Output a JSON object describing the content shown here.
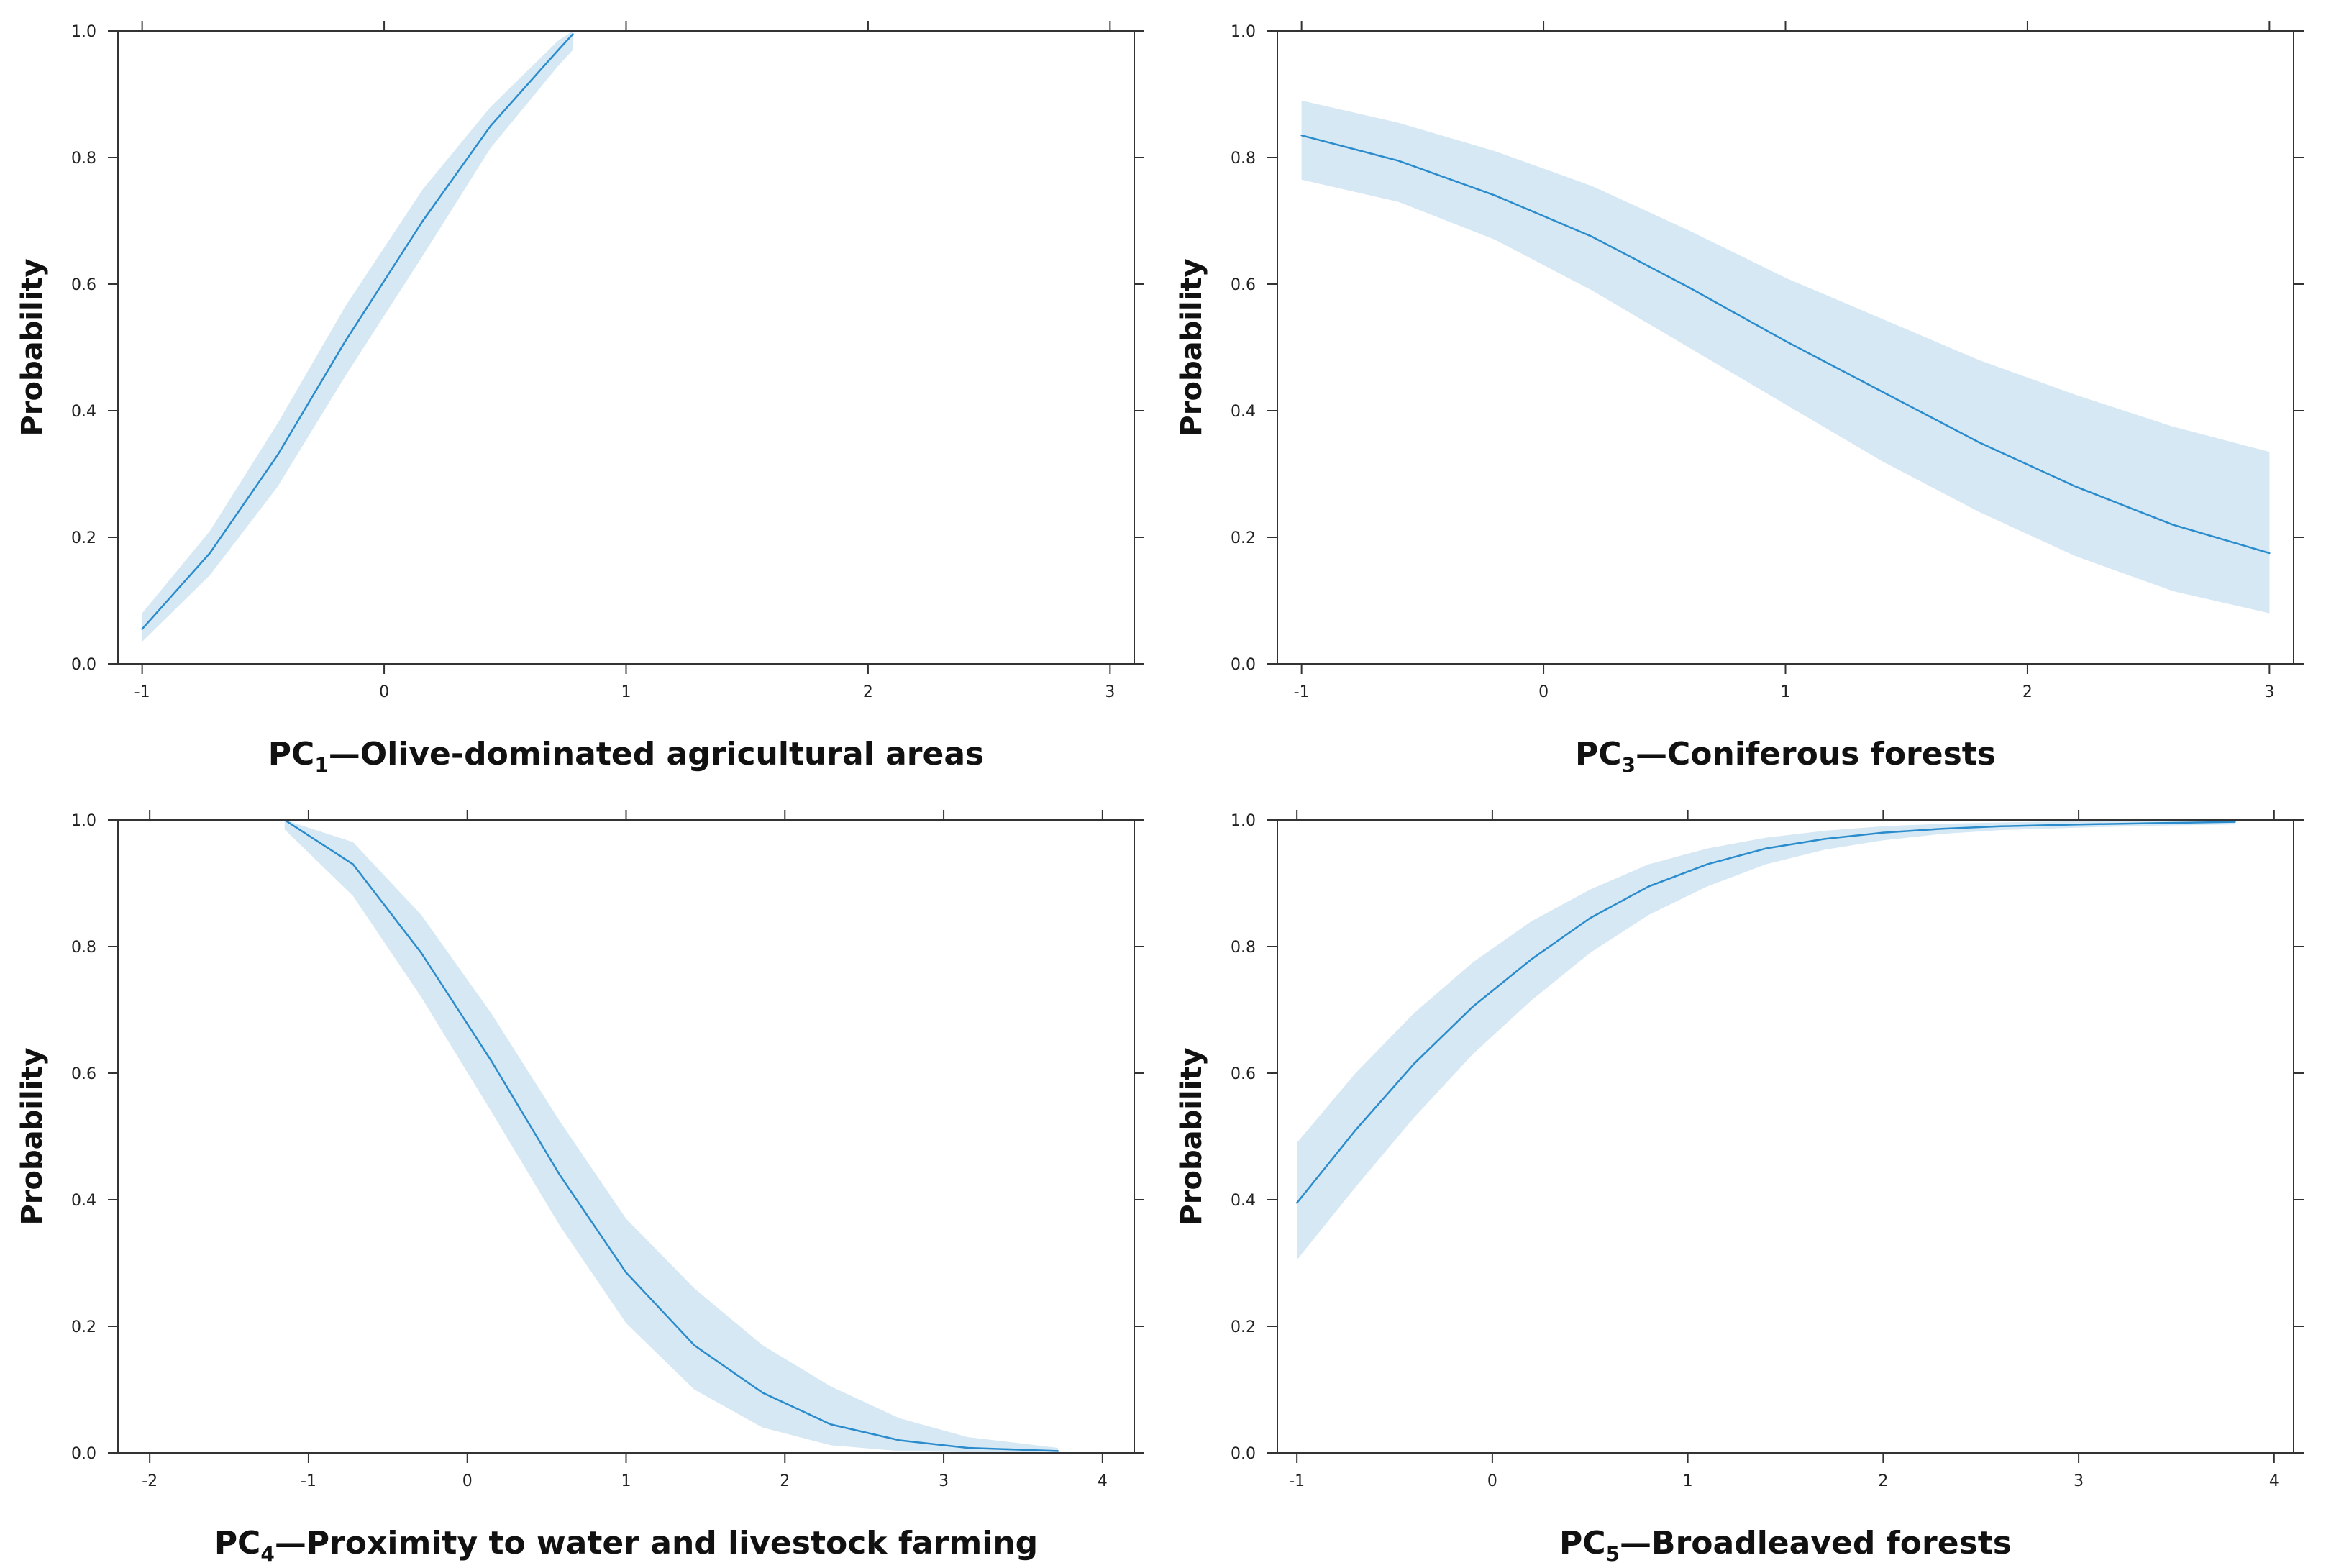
{
  "chart_data": [
    {
      "type": "line",
      "title": "",
      "xlabel": {
        "prefix": "PC",
        "subscript": "1",
        "suffix": "—Olive-dominated agricultural areas"
      },
      "ylabel": "Probability",
      "xlim": [
        -1.1,
        3.1
      ],
      "ylim": [
        0,
        1
      ],
      "xticks": [
        "-1",
        "0",
        "1",
        "2",
        "3"
      ],
      "xtick_values": [
        -1,
        0,
        1,
        2,
        3
      ],
      "yticks": [
        "0.0",
        "0.2",
        "0.4",
        "0.6",
        "0.8",
        "1.0"
      ],
      "ytick_values": [
        0,
        0.2,
        0.4,
        0.6,
        0.8,
        1.0
      ],
      "band_color": "#d6e8f4",
      "line_color": "#2a8ccc",
      "series": [
        {
          "name": "fit",
          "x": [
            -1.0,
            -0.72,
            -0.44,
            -0.16,
            0.16,
            0.44,
            0.72,
            0.78
          ],
          "y": [
            0.055,
            0.175,
            0.33,
            0.51,
            0.7,
            0.85,
            0.97,
            0.995
          ],
          "lower": [
            0.035,
            0.14,
            0.28,
            0.455,
            0.645,
            0.815,
            0.945,
            0.97
          ],
          "upper": [
            0.08,
            0.21,
            0.38,
            0.565,
            0.75,
            0.88,
            0.985,
            1.0
          ]
        }
      ]
    },
    {
      "type": "line",
      "title": "",
      "xlabel": {
        "prefix": "PC",
        "subscript": "3",
        "suffix": "—Coniferous forests"
      },
      "ylabel": "Probability",
      "xlim": [
        -1.1,
        3.1
      ],
      "ylim": [
        0,
        1
      ],
      "xticks": [
        "-1",
        "0",
        "1",
        "2",
        "3"
      ],
      "xtick_values": [
        -1,
        0,
        1,
        2,
        3
      ],
      "yticks": [
        "0.0",
        "0.2",
        "0.4",
        "0.6",
        "0.8",
        "1.0"
      ],
      "ytick_values": [
        0,
        0.2,
        0.4,
        0.6,
        0.8,
        1.0
      ],
      "band_color": "#d6e8f4",
      "line_color": "#2a8ccc",
      "series": [
        {
          "name": "fit",
          "x": [
            -1.0,
            -0.6,
            -0.2,
            0.2,
            0.6,
            1.0,
            1.4,
            1.8,
            2.2,
            2.6,
            3.0
          ],
          "y": [
            0.835,
            0.795,
            0.74,
            0.675,
            0.595,
            0.51,
            0.43,
            0.35,
            0.28,
            0.22,
            0.175
          ],
          "lower": [
            0.765,
            0.73,
            0.67,
            0.59,
            0.5,
            0.41,
            0.32,
            0.24,
            0.17,
            0.115,
            0.08
          ],
          "upper": [
            0.89,
            0.855,
            0.81,
            0.755,
            0.685,
            0.61,
            0.545,
            0.48,
            0.425,
            0.375,
            0.335
          ]
        }
      ]
    },
    {
      "type": "line",
      "title": "",
      "xlabel": {
        "prefix": "PC",
        "subscript": "4",
        "suffix": "—Proximity to water and livestock farming"
      },
      "ylabel": "Probability",
      "xlim": [
        -2.2,
        4.2
      ],
      "ylim": [
        0,
        1
      ],
      "xticks": [
        "-2",
        "-1",
        "0",
        "1",
        "2",
        "3",
        "4"
      ],
      "xtick_values": [
        -2,
        -1,
        0,
        1,
        2,
        3,
        4
      ],
      "yticks": [
        "0.0",
        "0.2",
        "0.4",
        "0.6",
        "0.8",
        "1.0"
      ],
      "ytick_values": [
        0,
        0.2,
        0.4,
        0.6,
        0.8,
        1.0
      ],
      "band_color": "#d6e8f4",
      "line_color": "#2a8ccc",
      "series": [
        {
          "name": "fit",
          "x": [
            -1.15,
            -0.72,
            -0.29,
            0.15,
            0.58,
            1.0,
            1.43,
            1.86,
            2.29,
            2.72,
            3.15,
            3.72
          ],
          "y": [
            1.0,
            0.93,
            0.79,
            0.62,
            0.44,
            0.285,
            0.17,
            0.095,
            0.045,
            0.02,
            0.008,
            0.003
          ],
          "lower": [
            0.985,
            0.88,
            0.72,
            0.54,
            0.36,
            0.205,
            0.1,
            0.04,
            0.012,
            0.003,
            0.001,
            0.0
          ],
          "upper": [
            1.0,
            0.965,
            0.85,
            0.695,
            0.525,
            0.37,
            0.26,
            0.17,
            0.105,
            0.055,
            0.025,
            0.008
          ]
        }
      ]
    },
    {
      "type": "line",
      "title": "",
      "xlabel": {
        "prefix": "PC",
        "subscript": "5",
        "suffix": "—Broadleaved forests"
      },
      "ylabel": "Probability",
      "xlim": [
        -1.1,
        4.1
      ],
      "ylim": [
        0,
        1
      ],
      "xticks": [
        "-1",
        "0",
        "1",
        "2",
        "3",
        "4"
      ],
      "xtick_values": [
        -1,
        0,
        1,
        2,
        3,
        4
      ],
      "yticks": [
        "0.0",
        "0.2",
        "0.4",
        "0.6",
        "0.8",
        "1.0"
      ],
      "ytick_values": [
        0,
        0.2,
        0.4,
        0.6,
        0.8,
        1.0
      ],
      "band_color": "#d6e8f4",
      "line_color": "#2a8ccc",
      "series": [
        {
          "name": "fit",
          "x": [
            -1.0,
            -0.7,
            -0.4,
            -0.1,
            0.2,
            0.5,
            0.8,
            1.1,
            1.4,
            1.7,
            2.0,
            2.3,
            2.6,
            3.0,
            3.4,
            3.8
          ],
          "y": [
            0.395,
            0.51,
            0.615,
            0.705,
            0.78,
            0.845,
            0.895,
            0.93,
            0.955,
            0.97,
            0.98,
            0.986,
            0.99,
            0.993,
            0.995,
            0.997
          ],
          "lower": [
            0.305,
            0.42,
            0.53,
            0.63,
            0.715,
            0.79,
            0.85,
            0.895,
            0.93,
            0.953,
            0.968,
            0.978,
            0.984,
            0.988,
            0.991,
            0.993
          ],
          "upper": [
            0.49,
            0.6,
            0.695,
            0.775,
            0.84,
            0.89,
            0.93,
            0.955,
            0.972,
            0.983,
            0.99,
            0.994,
            0.996,
            0.998,
            0.999,
            1.0
          ]
        }
      ]
    }
  ]
}
